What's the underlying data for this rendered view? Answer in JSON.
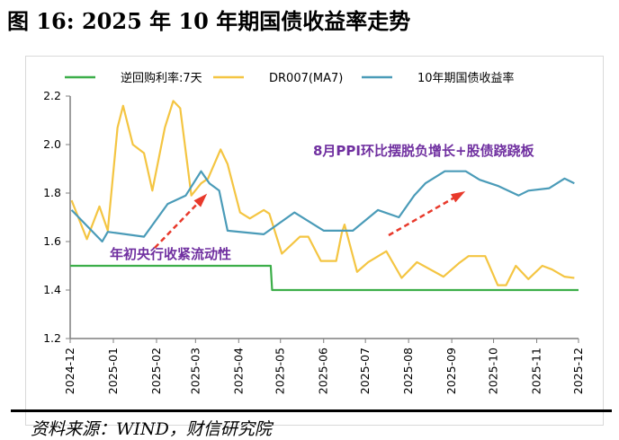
{
  "chart_data": {
    "type": "line",
    "title": "图 16:  2025 年 10 年期国债收益率走势",
    "source": "资料来源：WIND，财信研究院",
    "xlabel": "",
    "ylabel": "",
    "xlim": [
      "2024-12-01",
      "2025-12-01"
    ],
    "ylim": [
      1.2,
      2.2
    ],
    "x_ticks": [
      "2024-12",
      "2025-01",
      "2025-02",
      "2025-03",
      "2025-04",
      "2025-05",
      "2025-06",
      "2025-07",
      "2025-08",
      "2025-09",
      "2025-10",
      "2025-11",
      "2025-12"
    ],
    "y_ticks": [
      "1.2",
      "1.4",
      "1.6",
      "1.8",
      "2.0",
      "2.2"
    ],
    "grid": false,
    "legend_position": "top",
    "series": [
      {
        "name": "逆回购利率:7天",
        "color": "#3cae49",
        "x": [
          "2024-12-01",
          "2025-04-24",
          "2025-04-25",
          "2025-12-01"
        ],
        "values": [
          1.5,
          1.5,
          1.4,
          1.4
        ]
      },
      {
        "name": "DR007(MA7)",
        "color": "#f4c542",
        "x": [
          "2024-12-02",
          "2024-12-13",
          "2024-12-22",
          "2024-12-28",
          "2025-01-04",
          "2025-01-08",
          "2025-01-15",
          "2025-01-23",
          "2025-01-29",
          "2025-02-07",
          "2025-02-13",
          "2025-02-18",
          "2025-02-26",
          "2025-03-05",
          "2025-03-10",
          "2025-03-19",
          "2025-03-24",
          "2025-04-02",
          "2025-04-09",
          "2025-04-19",
          "2025-04-23",
          "2025-05-02",
          "2025-05-15",
          "2025-05-21",
          "2025-05-30",
          "2025-06-10",
          "2025-06-14",
          "2025-06-16",
          "2025-06-25",
          "2025-07-03",
          "2025-07-16",
          "2025-07-27",
          "2025-08-07",
          "2025-08-26",
          "2025-09-06",
          "2025-09-13",
          "2025-09-25",
          "2025-10-04",
          "2025-10-10",
          "2025-10-17",
          "2025-10-26",
          "2025-11-05",
          "2025-11-12",
          "2025-11-21",
          "2025-11-28"
        ],
        "values": [
          1.77,
          1.61,
          1.745,
          1.645,
          2.07,
          2.16,
          2.0,
          1.965,
          1.81,
          2.07,
          2.18,
          2.15,
          1.79,
          1.84,
          1.86,
          1.98,
          1.92,
          1.72,
          1.695,
          1.73,
          1.715,
          1.55,
          1.62,
          1.62,
          1.52,
          1.52,
          1.635,
          1.67,
          1.475,
          1.515,
          1.56,
          1.45,
          1.515,
          1.455,
          1.51,
          1.54,
          1.54,
          1.42,
          1.42,
          1.5,
          1.445,
          1.5,
          1.485,
          1.455,
          1.45
        ]
      },
      {
        "name": "10年期国债收益率",
        "color": "#4a9bb8",
        "x": [
          "2024-12-02",
          "2024-12-24",
          "2024-12-28",
          "2025-01-23",
          "2025-02-09",
          "2025-02-22",
          "2025-03-05",
          "2025-03-11",
          "2025-03-18",
          "2025-03-24",
          "2025-04-19",
          "2025-05-11",
          "2025-06-01",
          "2025-06-22",
          "2025-07-10",
          "2025-07-25",
          "2025-08-05",
          "2025-08-13",
          "2025-08-27",
          "2025-09-11",
          "2025-09-21",
          "2025-10-04",
          "2025-10-19",
          "2025-10-26",
          "2025-11-10",
          "2025-11-21",
          "2025-11-28"
        ],
        "values": [
          1.73,
          1.6,
          1.64,
          1.62,
          1.755,
          1.79,
          1.89,
          1.84,
          1.81,
          1.645,
          1.63,
          1.72,
          1.645,
          1.645,
          1.73,
          1.7,
          1.79,
          1.84,
          1.89,
          1.89,
          1.855,
          1.83,
          1.79,
          1.81,
          1.82,
          1.86,
          1.84
        ]
      }
    ],
    "annotations": [
      {
        "text": "年初央行收紧流动性",
        "color": "#7030a0"
      },
      {
        "text": "8月PPI环比摆脱负增长+股债跷跷板",
        "color": "#7030a0"
      }
    ],
    "arrow_color": "#e8392b"
  }
}
